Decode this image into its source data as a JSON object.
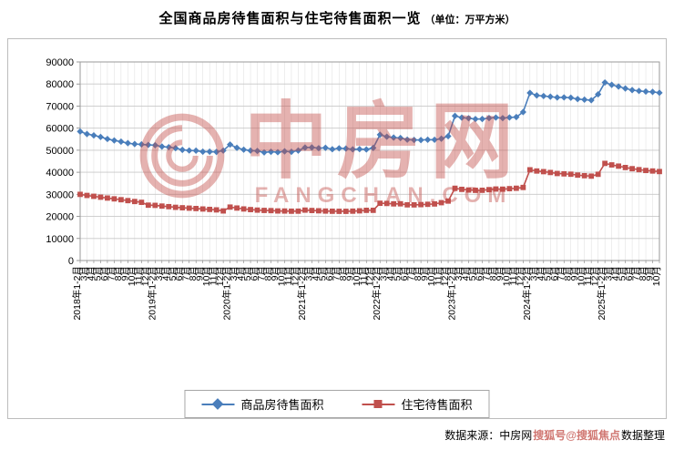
{
  "title": {
    "main": "全国商品房待售面积与住宅待售面积一览",
    "unit": "（单位：万平方米）"
  },
  "watermark": {
    "text": "中房网",
    "subtext": "FANGCHAN.COM"
  },
  "legend": [
    {
      "label": "商品房待售面积",
      "color": "#4a7ebb",
      "marker": "diamond"
    },
    {
      "label": "住宅待售面积",
      "color": "#c0504d",
      "marker": "square"
    }
  ],
  "footer": {
    "source": "数据来源：中房网",
    "overlay": "搜狐号@搜狐焦点",
    "suffix": "数据整理"
  },
  "chart_data": {
    "type": "line",
    "title": "全国商品房待售面积与住宅待售面积一览（单位：万平方米）",
    "xlabel": "",
    "ylabel": "",
    "ylim": [
      0,
      90000
    ],
    "ytick_step": 10000,
    "grid": true,
    "legend_position": "bottom",
    "years": [
      2018,
      2019,
      2020,
      2021,
      2022,
      2023,
      2024,
      2025
    ],
    "categories": [
      "2018年1-2月",
      "3月",
      "4月",
      "5月",
      "6月",
      "7月",
      "8月",
      "9月",
      "10月",
      "11月",
      "12月",
      "2019年1-2月",
      "3月",
      "4月",
      "5月",
      "6月",
      "7月",
      "8月",
      "9月",
      "10月",
      "11月",
      "12月",
      "2020年1-2月",
      "3月",
      "4月",
      "5月",
      "6月",
      "7月",
      "8月",
      "9月",
      "10月",
      "11月",
      "12月",
      "2021年1-2月",
      "3月",
      "4月",
      "5月",
      "6月",
      "7月",
      "8月",
      "9月",
      "10月",
      "11月",
      "12月",
      "2022年1-2月",
      "3月",
      "4月",
      "5月",
      "6月",
      "7月",
      "8月",
      "9月",
      "10月",
      "11月",
      "12月",
      "2023年1-2月",
      "3月",
      "4月",
      "5月",
      "6月",
      "7月",
      "8月",
      "9月",
      "10月",
      "11月",
      "12月",
      "2024年1-2月",
      "3月",
      "4月",
      "5月",
      "6月",
      "7月",
      "8月",
      "9月",
      "10月",
      "11月",
      "12月",
      "2025年1-2月",
      "3月",
      "4月",
      "5月",
      "6月",
      "7月",
      "8月",
      "9月",
      "10月"
    ],
    "series": [
      {
        "name": "商品房待售面积",
        "color": "#4a7ebb",
        "marker": "diamond",
        "values": [
          58468,
          57329,
          56726,
          56010,
          55083,
          54428,
          53873,
          53191,
          52789,
          52627,
          52414,
          52251,
          51646,
          51380,
          50928,
          50162,
          49876,
          49784,
          49346,
          49323,
          49221,
          49821,
          52563,
          51104,
          50248,
          49821,
          49662,
          49007,
          49295,
          49101,
          49492,
          49287,
          49850,
          51208,
          51253,
          50916,
          51087,
          50443,
          50864,
          50738,
          50385,
          50494,
          50341,
          51023,
          57026,
          56113,
          55735,
          55533,
          54784,
          54655,
          54605,
          54767,
          54734,
          55203,
          56366,
          65528,
          64770,
          64487,
          64120,
          64159,
          64564,
          64795,
          64537,
          64835,
          65013,
          67295,
          75969,
          74833,
          74553,
          74256,
          73894,
          73926,
          73783,
          73177,
          72909,
          72645,
          75327,
          80689,
          79639,
          78848,
          77987,
          77249,
          76863,
          76583,
          76421,
          76031
        ]
      },
      {
        "name": "住宅待售面积",
        "color": "#c0504d",
        "marker": "square",
        "values": [
          29985,
          29500,
          29110,
          28700,
          28320,
          27950,
          27560,
          27150,
          26750,
          26380,
          25091,
          24997,
          24677,
          24422,
          24112,
          23914,
          23740,
          23565,
          23355,
          23171,
          22953,
          22473,
          24224,
          23788,
          23374,
          23084,
          22850,
          22707,
          22616,
          22466,
          22439,
          22354,
          22379,
          22849,
          22670,
          22544,
          22423,
          22340,
          22304,
          22300,
          22376,
          22519,
          22754,
          22761,
          25954,
          25864,
          25681,
          25708,
          25249,
          25218,
          25339,
          25481,
          25645,
          26220,
          26947,
          32747,
          32254,
          31954,
          31810,
          31839,
          32119,
          32406,
          32337,
          32563,
          32759,
          33119,
          41118,
          40572,
          40282,
          39894,
          39437,
          39277,
          39120,
          38713,
          38446,
          38254,
          39088,
          44019,
          43337,
          42788,
          42154,
          41619,
          41181,
          40813,
          40577,
          40331
        ]
      }
    ]
  }
}
